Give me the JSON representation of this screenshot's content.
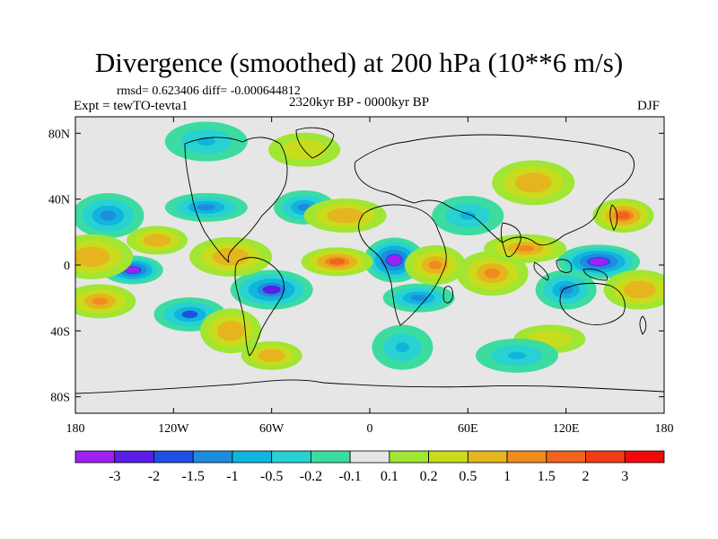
{
  "title": "Divergence (smoothed) at 200 hPa (10**6 m/s)",
  "stats": "rmsd= 0.623406 diff= -0.000644812",
  "experiment": "Expt = tewTO-tevta1",
  "period": "2320kyr BP - 0000kyr BP",
  "season": "DJF",
  "map": {
    "lat_ticks": [
      "80N",
      "40N",
      "0",
      "40S",
      "80S"
    ],
    "lat_values": [
      80,
      40,
      0,
      -40,
      -80
    ],
    "lon_ticks": [
      "180",
      "120W",
      "60W",
      "0",
      "60E",
      "120E",
      "180"
    ],
    "lon_values": [
      -180,
      -120,
      -60,
      0,
      60,
      120,
      180
    ],
    "lat_range": [
      -90,
      90
    ],
    "lon_range": [
      -180,
      180
    ],
    "background_color": "#e6e6e6"
  },
  "colorbar": {
    "labels": [
      "-3",
      "-2",
      "-1.5",
      "-1",
      "-0.5",
      "-0.2",
      "-0.1",
      "0.1",
      "0.2",
      "0.5",
      "1",
      "1.5",
      "2",
      "3"
    ],
    "colors": [
      "#a020f0",
      "#5a1ee6",
      "#1e50e6",
      "#1e8cdc",
      "#10b4dc",
      "#28d2d2",
      "#3cdca0",
      "#e6e6e6",
      "#a0e632",
      "#c8dc1e",
      "#e6b41e",
      "#f08c1e",
      "#f0641e",
      "#f03c14",
      "#f00a0a"
    ]
  },
  "divergence_field": [
    {
      "lon": -145,
      "lat": -3,
      "value": -3
    },
    {
      "lon": -110,
      "lat": -30,
      "value": -1.5
    },
    {
      "lon": -60,
      "lat": -15,
      "value": -2
    },
    {
      "lon": 15,
      "lat": 3,
      "value": -3
    },
    {
      "lon": 30,
      "lat": -20,
      "value": -1
    },
    {
      "lon": 140,
      "lat": 2,
      "value": -3
    },
    {
      "lon": 120,
      "lat": -15,
      "value": -1
    },
    {
      "lon": -160,
      "lat": 30,
      "value": -1
    },
    {
      "lon": -100,
      "lat": 35,
      "value": -1
    },
    {
      "lon": -40,
      "lat": 35,
      "value": -1
    },
    {
      "lon": 60,
      "lat": 30,
      "value": -0.5
    },
    {
      "lon": -170,
      "lat": 5,
      "value": 1
    },
    {
      "lon": -130,
      "lat": 15,
      "value": 1
    },
    {
      "lon": -165,
      "lat": -22,
      "value": 1.5
    },
    {
      "lon": -85,
      "lat": 5,
      "value": 1
    },
    {
      "lon": -85,
      "lat": -40,
      "value": 1
    },
    {
      "lon": -20,
      "lat": 2,
      "value": 2
    },
    {
      "lon": -15,
      "lat": 30,
      "value": 1
    },
    {
      "lon": 40,
      "lat": 0,
      "value": 1.5
    },
    {
      "lon": 75,
      "lat": -5,
      "value": 1.5
    },
    {
      "lon": 95,
      "lat": 10,
      "value": 1.5
    },
    {
      "lon": 155,
      "lat": 30,
      "value": 2
    },
    {
      "lon": 165,
      "lat": -15,
      "value": 1
    },
    {
      "lon": 100,
      "lat": 50,
      "value": 1
    },
    {
      "lon": -60,
      "lat": -55,
      "value": 1
    },
    {
      "lon": -40,
      "lat": 70,
      "value": 0.5
    },
    {
      "lon": -100,
      "lat": 75,
      "value": -0.5
    },
    {
      "lon": 20,
      "lat": -50,
      "value": -0.5
    },
    {
      "lon": 110,
      "lat": -45,
      "value": 0.5
    },
    {
      "lon": 90,
      "lat": -55,
      "value": -0.5
    }
  ]
}
